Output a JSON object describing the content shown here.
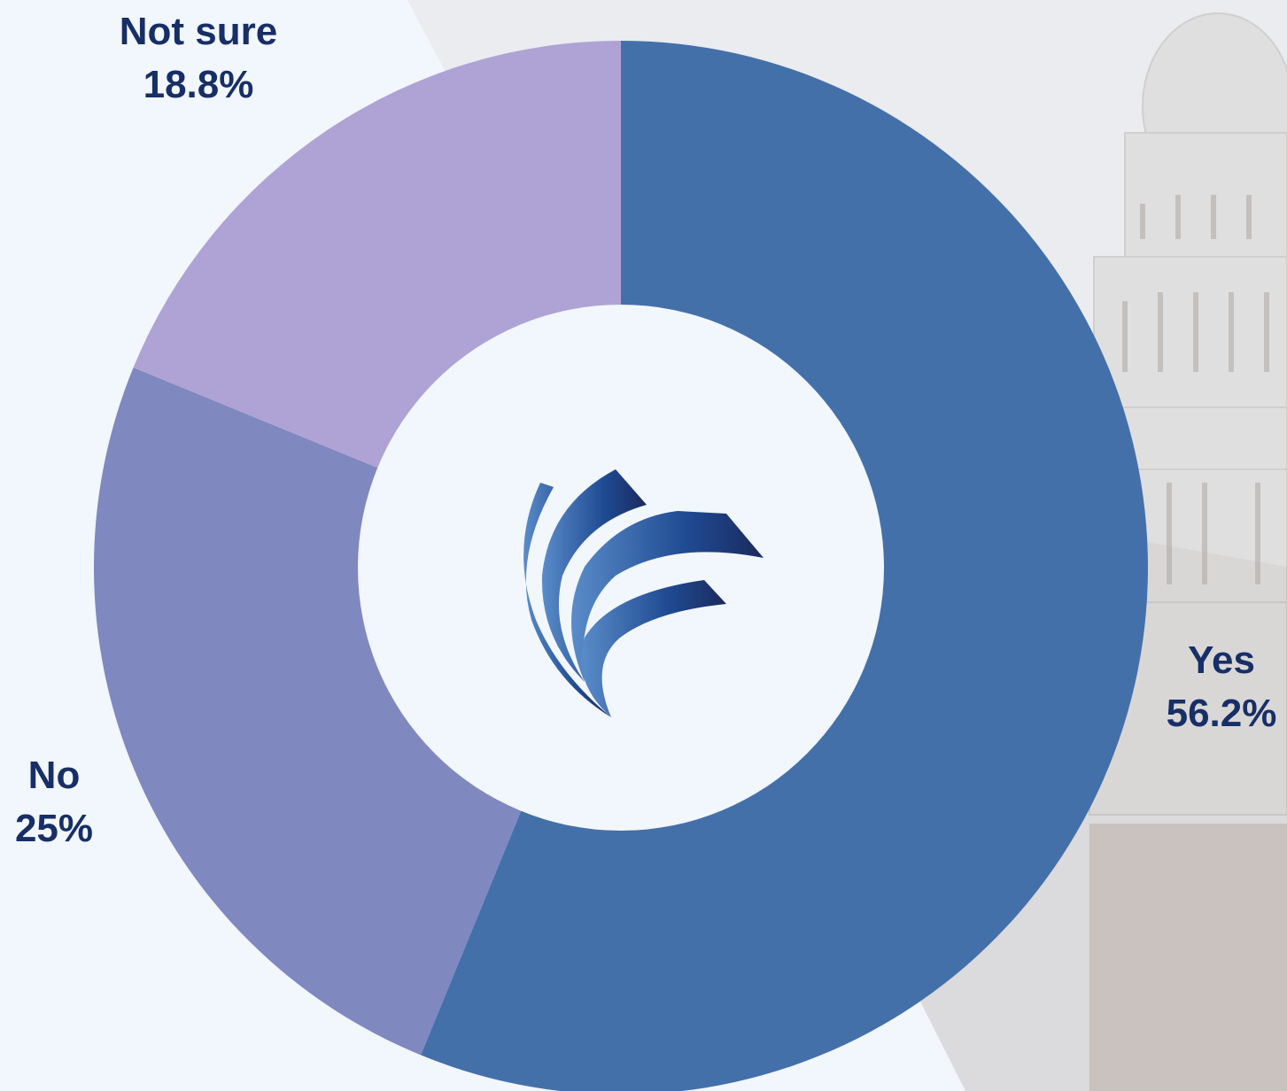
{
  "chart_data": {
    "type": "pie",
    "donut": true,
    "title": "",
    "categories": [
      "Yes",
      "No",
      "Not sure"
    ],
    "values": [
      56.2,
      25,
      18.8
    ],
    "value_labels": [
      "56.2%",
      "25%",
      "18.8%"
    ],
    "colors": [
      "#4470aa",
      "#7f88bf",
      "#afa3d5"
    ],
    "start_angle_deg": 0,
    "direction": "clockwise",
    "legend": "none (labels placed beside slices)"
  },
  "theme": {
    "label_color": "#172f66",
    "background": "#f2f6fd"
  },
  "center_logo": {
    "icon": "swoosh-logo-icon"
  },
  "background_image": {
    "subject": "capitol-building-photo"
  }
}
